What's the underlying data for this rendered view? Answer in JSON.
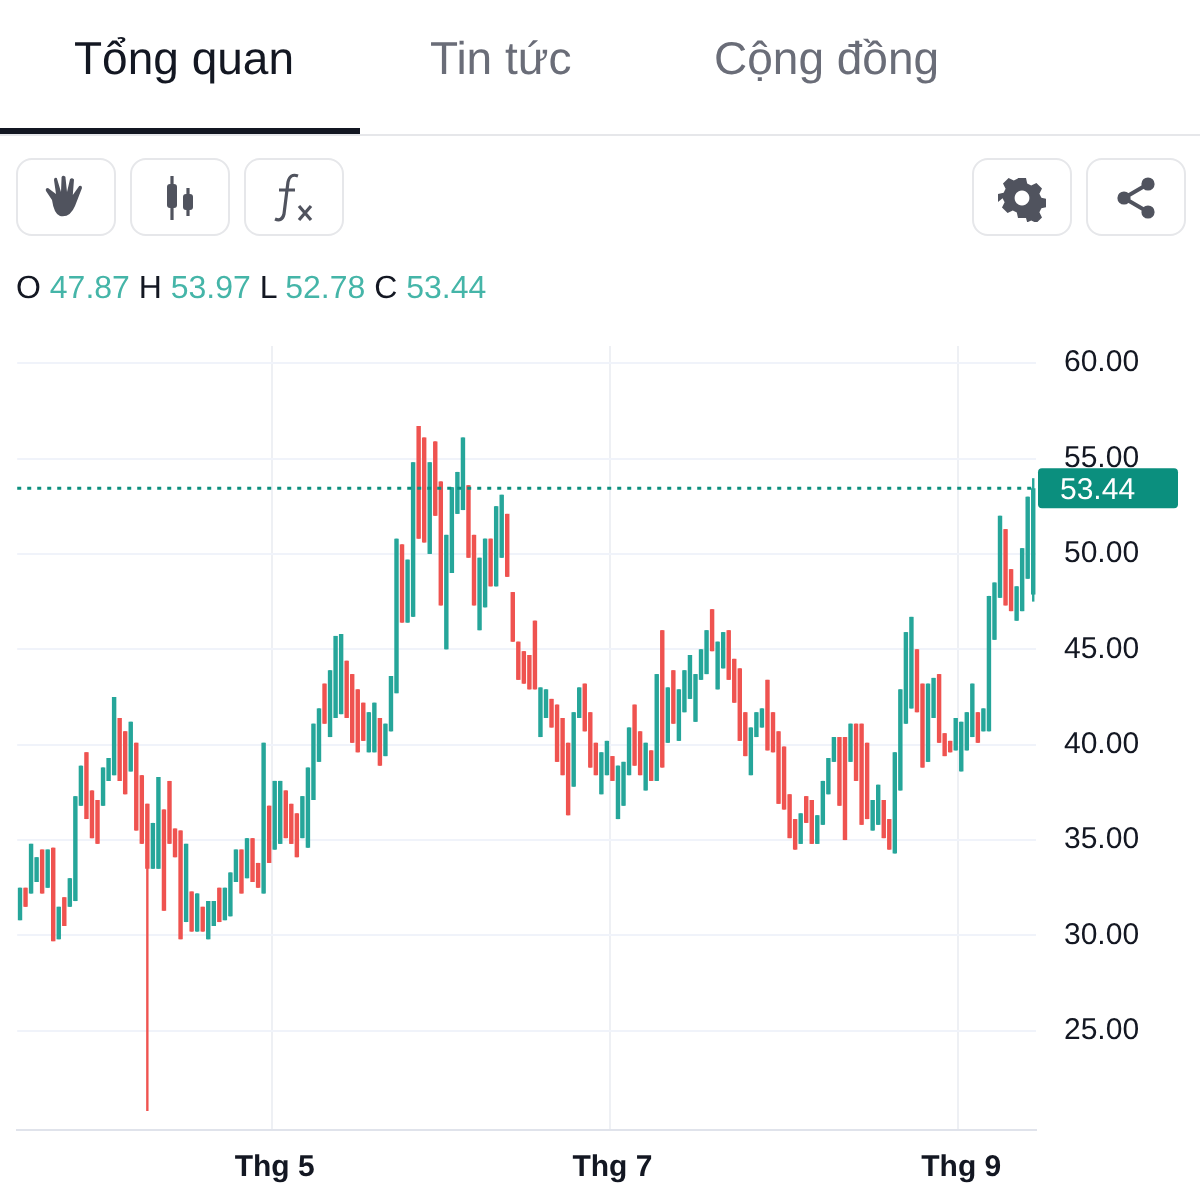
{
  "chart_data": {
    "type": "candlestick",
    "annotations": [
      "Tổng quan",
      "Tin tức",
      "Cộng đồng",
      "O 47.87 H 53.97 L 52.78 C 53.44"
    ],
    "categories": [
      null,
      null,
      null,
      null,
      null,
      null,
      null,
      null,
      null,
      null,
      null,
      null,
      null,
      null,
      null,
      null,
      null,
      null,
      null,
      null,
      null,
      null,
      null,
      null,
      null,
      null,
      null,
      null,
      null,
      null,
      null,
      null,
      null,
      null,
      null,
      null,
      null,
      null,
      null,
      null,
      null,
      null,
      null,
      null,
      null,
      null,
      "Thg 5",
      null,
      null,
      null,
      null,
      null,
      null,
      null,
      null,
      null,
      null,
      null,
      null,
      null,
      null,
      null,
      null,
      null,
      null,
      null,
      null,
      null,
      null,
      null,
      null,
      null,
      null,
      null,
      null,
      null,
      null,
      null,
      null,
      null,
      null,
      null,
      null,
      null,
      null,
      null,
      null,
      null,
      null,
      null,
      null,
      null,
      null,
      null,
      null,
      null,
      null,
      null,
      null,
      null,
      null,
      null,
      null,
      null,
      null,
      null,
      null,
      "Thg 7",
      null,
      null,
      null,
      null,
      null,
      null,
      null,
      null,
      null,
      null,
      null,
      null,
      null,
      null,
      null,
      null,
      null,
      null,
      null,
      null,
      null,
      null,
      null,
      null,
      null,
      null,
      null,
      null,
      null,
      null,
      null,
      null,
      null,
      null,
      null,
      null,
      null,
      null,
      null,
      null,
      null,
      null,
      null,
      null,
      null,
      null,
      null,
      null,
      null,
      null,
      null,
      null,
      null,
      null,
      null,
      null,
      null,
      null,
      null,
      null,
      null,
      null,
      "Thg 9",
      null,
      null,
      null,
      null,
      null,
      null,
      null,
      null,
      null,
      null,
      null,
      null,
      null
    ],
    "ohlc": [
      [
        30.8,
        32.5,
        30.8,
        32.5
      ],
      [
        32.5,
        32.5,
        31.5,
        31.5
      ],
      [
        32.2,
        34.8,
        32.2,
        34.8
      ],
      [
        32.8,
        34.1,
        32.8,
        34.1
      ],
      [
        34.5,
        34.5,
        32.2,
        32.2
      ],
      [
        32.5,
        34.5,
        32.5,
        34.5
      ],
      [
        34.6,
        34.6,
        29.7,
        29.7
      ],
      [
        29.8,
        31.5,
        29.8,
        31.5
      ],
      [
        32.0,
        32.0,
        30.5,
        30.5
      ],
      [
        31.5,
        33.0,
        31.5,
        33.0
      ],
      [
        31.8,
        37.3,
        31.8,
        37.3
      ],
      [
        36.8,
        38.9,
        36.8,
        38.9
      ],
      [
        39.6,
        39.6,
        36.1,
        36.1
      ],
      [
        37.6,
        37.6,
        35.1,
        35.1
      ],
      [
        37.1,
        37.1,
        34.8,
        34.8
      ],
      [
        36.8,
        38.8,
        36.8,
        38.8
      ],
      [
        38.1,
        39.3,
        38.1,
        39.3
      ],
      [
        38.4,
        42.5,
        38.4,
        42.5
      ],
      [
        41.4,
        41.4,
        38.1,
        38.1
      ],
      [
        40.7,
        40.7,
        37.4,
        37.4
      ],
      [
        38.6,
        41.2,
        38.6,
        41.2
      ],
      [
        40.1,
        40.1,
        35.5,
        35.5
      ],
      [
        38.4,
        38.4,
        34.8,
        34.8
      ],
      [
        36.9,
        36.9,
        20.8,
        33.5
      ],
      [
        33.5,
        35.9,
        33.5,
        35.9
      ],
      [
        33.5,
        38.3,
        33.5,
        38.3
      ],
      [
        36.6,
        36.6,
        31.3,
        31.3
      ],
      [
        38.1,
        38.1,
        34.8,
        34.8
      ],
      [
        35.6,
        35.6,
        34.1,
        34.1
      ],
      [
        35.5,
        35.5,
        29.8,
        29.8
      ],
      [
        30.7,
        34.8,
        30.7,
        34.8
      ],
      [
        32.3,
        32.3,
        30.2,
        30.2
      ],
      [
        30.2,
        32.2,
        30.2,
        32.2
      ],
      [
        31.5,
        31.5,
        30.2,
        30.2
      ],
      [
        29.8,
        31.8,
        29.8,
        31.8
      ],
      [
        30.5,
        31.8,
        30.5,
        31.8
      ],
      [
        32.5,
        32.5,
        30.7,
        30.7
      ],
      [
        30.8,
        32.5,
        30.8,
        32.5
      ],
      [
        31.0,
        33.3,
        31.0,
        33.3
      ],
      [
        32.8,
        34.5,
        32.8,
        34.5
      ],
      [
        34.5,
        34.5,
        32.2,
        32.2
      ],
      [
        33.0,
        35.1,
        33.0,
        35.1
      ],
      [
        35.1,
        35.1,
        32.8,
        32.8
      ],
      [
        33.8,
        33.8,
        32.5,
        32.5
      ],
      [
        32.2,
        40.1,
        32.2,
        40.1
      ],
      [
        36.8,
        36.8,
        33.8,
        33.8
      ],
      [
        34.5,
        38.1,
        34.5,
        38.1
      ],
      [
        34.8,
        38.1,
        34.8,
        38.1
      ],
      [
        37.6,
        37.6,
        35.1,
        35.1
      ],
      [
        36.9,
        36.9,
        34.8,
        34.8
      ],
      [
        36.4,
        36.4,
        34.1,
        34.1
      ],
      [
        35.1,
        37.3,
        35.1,
        37.3
      ],
      [
        34.6,
        38.8,
        34.6,
        38.8
      ],
      [
        37.1,
        41.1,
        37.1,
        41.1
      ],
      [
        39.1,
        41.9,
        39.1,
        41.9
      ],
      [
        43.2,
        43.2,
        41.1,
        41.1
      ],
      [
        40.4,
        43.9,
        40.4,
        43.9
      ],
      [
        41.4,
        45.7,
        41.4,
        45.7
      ],
      [
        41.6,
        45.8,
        41.6,
        45.8
      ],
      [
        44.4,
        44.4,
        41.4,
        41.4
      ],
      [
        43.7,
        43.7,
        40.1,
        40.1
      ],
      [
        42.9,
        42.9,
        39.6,
        39.6
      ],
      [
        42.2,
        42.2,
        40.2,
        40.2
      ],
      [
        39.6,
        41.7,
        39.6,
        41.7
      ],
      [
        39.6,
        42.2,
        39.6,
        42.2
      ],
      [
        41.4,
        41.4,
        38.9,
        38.9
      ],
      [
        39.4,
        41.1,
        39.4,
        41.1
      ],
      [
        40.7,
        43.6,
        40.7,
        43.6
      ],
      [
        42.7,
        50.8,
        42.7,
        50.8
      ],
      [
        50.5,
        50.5,
        46.4,
        46.4
      ],
      [
        46.4,
        49.7,
        46.4,
        49.7
      ],
      [
        46.7,
        54.8,
        46.7,
        54.8
      ],
      [
        56.7,
        56.7,
        50.8,
        50.8
      ],
      [
        56.1,
        56.1,
        50.6,
        50.6
      ],
      [
        50.0,
        54.8,
        50.0,
        54.8
      ],
      [
        55.9,
        55.9,
        52.0,
        52.0
      ],
      [
        53.8,
        53.8,
        47.3,
        47.3
      ],
      [
        45.0,
        51.0,
        45.0,
        51.0
      ],
      [
        49.0,
        53.5,
        49.0,
        53.5
      ],
      [
        52.1,
        54.3,
        52.1,
        54.3
      ],
      [
        52.3,
        56.1,
        52.3,
        56.1
      ],
      [
        53.6,
        53.6,
        49.8,
        49.8
      ],
      [
        51.0,
        51.0,
        47.3,
        47.3
      ],
      [
        46.0,
        49.8,
        46.0,
        49.8
      ],
      [
        47.2,
        50.8,
        47.2,
        50.8
      ],
      [
        50.8,
        50.8,
        48.3,
        48.3
      ],
      [
        48.3,
        52.5,
        48.3,
        52.5
      ],
      [
        49.8,
        53.1,
        49.8,
        53.1
      ],
      [
        52.1,
        52.1,
        48.8,
        48.8
      ],
      [
        48.0,
        48.0,
        45.4,
        45.4
      ],
      [
        45.4,
        45.4,
        43.4,
        43.4
      ],
      [
        44.9,
        44.9,
        43.2,
        43.2
      ],
      [
        44.7,
        44.7,
        42.9,
        42.9
      ],
      [
        46.5,
        46.5,
        42.9,
        42.9
      ],
      [
        40.4,
        43.0,
        40.4,
        43.0
      ],
      [
        41.4,
        42.9,
        41.4,
        42.9
      ],
      [
        42.4,
        42.4,
        40.9,
        40.9
      ],
      [
        42.1,
        42.1,
        39.1,
        39.1
      ],
      [
        41.4,
        41.4,
        38.4,
        38.4
      ],
      [
        40.1,
        40.1,
        36.3,
        36.3
      ],
      [
        37.8,
        41.7,
        37.8,
        41.7
      ],
      [
        41.4,
        43.0,
        41.4,
        43.0
      ],
      [
        43.2,
        43.2,
        40.7,
        40.7
      ],
      [
        41.7,
        41.7,
        38.8,
        38.8
      ],
      [
        40.1,
        40.1,
        38.4,
        38.4
      ],
      [
        37.4,
        39.6,
        37.4,
        39.6
      ],
      [
        38.4,
        40.2,
        38.4,
        40.2
      ],
      [
        39.4,
        39.4,
        38.1,
        38.1
      ],
      [
        36.1,
        38.9,
        36.1,
        38.9
      ],
      [
        36.8,
        39.1,
        36.8,
        39.1
      ],
      [
        38.4,
        40.9,
        38.4,
        40.9
      ],
      [
        42.1,
        42.1,
        38.9,
        38.9
      ],
      [
        40.7,
        40.7,
        38.4,
        38.4
      ],
      [
        37.6,
        40.1,
        37.6,
        40.1
      ],
      [
        39.7,
        39.7,
        38.1,
        38.1
      ],
      [
        38.1,
        43.7,
        38.1,
        43.7
      ],
      [
        46.0,
        46.0,
        38.8,
        38.8
      ],
      [
        40.1,
        43.0,
        40.1,
        43.0
      ],
      [
        43.9,
        43.9,
        41.1,
        41.1
      ],
      [
        40.2,
        42.9,
        40.2,
        42.9
      ],
      [
        41.7,
        43.9,
        41.7,
        43.9
      ],
      [
        42.4,
        44.7,
        42.4,
        44.7
      ],
      [
        41.2,
        43.7,
        41.2,
        43.7
      ],
      [
        43.4,
        45.0,
        43.4,
        45.0
      ],
      [
        43.7,
        46.0,
        43.7,
        46.0
      ],
      [
        47.1,
        47.1,
        44.9,
        44.9
      ],
      [
        42.9,
        45.4,
        42.9,
        45.4
      ],
      [
        44.0,
        45.9,
        44.0,
        45.9
      ],
      [
        46.0,
        46.0,
        43.4,
        43.4
      ],
      [
        44.5,
        44.5,
        42.2,
        42.2
      ],
      [
        44.0,
        44.0,
        40.2,
        40.2
      ],
      [
        41.7,
        41.7,
        39.4,
        39.4
      ],
      [
        38.4,
        40.9,
        38.4,
        40.9
      ],
      [
        40.4,
        41.7,
        40.4,
        41.7
      ],
      [
        40.9,
        41.9,
        40.9,
        41.9
      ],
      [
        43.4,
        43.4,
        39.7,
        39.7
      ],
      [
        41.7,
        41.7,
        39.6,
        39.6
      ],
      [
        40.7,
        40.7,
        36.9,
        36.9
      ],
      [
        39.9,
        39.9,
        36.6,
        36.6
      ],
      [
        37.4,
        37.4,
        35.1,
        35.1
      ],
      [
        36.1,
        36.1,
        34.5,
        34.5
      ],
      [
        34.8,
        36.4,
        34.8,
        36.4
      ],
      [
        37.3,
        37.3,
        35.9,
        35.9
      ],
      [
        37.1,
        37.1,
        34.8,
        34.8
      ],
      [
        34.8,
        36.3,
        34.8,
        36.3
      ],
      [
        35.8,
        38.1,
        35.8,
        38.1
      ],
      [
        37.4,
        39.3,
        37.4,
        39.3
      ],
      [
        39.1,
        40.4,
        39.1,
        40.4
      ],
      [
        40.4,
        40.4,
        36.8,
        36.8
      ],
      [
        40.4,
        40.4,
        35.0,
        35.0
      ],
      [
        39.1,
        41.1,
        39.1,
        41.1
      ],
      [
        41.1,
        41.1,
        38.1,
        38.1
      ],
      [
        41.1,
        41.1,
        35.8,
        35.8
      ],
      [
        40.1,
        40.1,
        36.1,
        36.1
      ],
      [
        35.5,
        37.1,
        35.5,
        37.1
      ],
      [
        35.8,
        37.9,
        35.8,
        37.9
      ],
      [
        37.1,
        37.1,
        35.1,
        35.1
      ],
      [
        36.1,
        36.1,
        34.5,
        34.5
      ],
      [
        34.3,
        39.6,
        34.3,
        39.6
      ],
      [
        37.6,
        42.9,
        37.6,
        42.9
      ],
      [
        41.1,
        45.9,
        41.1,
        45.9
      ],
      [
        41.9,
        46.7,
        41.9,
        46.7
      ],
      [
        45.0,
        45.0,
        41.7,
        41.7
      ],
      [
        43.2,
        43.2,
        38.8,
        38.8
      ],
      [
        39.1,
        43.2,
        39.1,
        43.2
      ],
      [
        41.4,
        43.5,
        41.4,
        43.5
      ],
      [
        43.7,
        43.7,
        40.1,
        40.1
      ],
      [
        40.6,
        40.6,
        39.4,
        39.4
      ],
      [
        40.2,
        40.2,
        39.6,
        39.6
      ],
      [
        39.7,
        41.4,
        39.7,
        41.4
      ],
      [
        38.6,
        41.2,
        38.6,
        41.2
      ],
      [
        39.7,
        41.7,
        39.7,
        41.7
      ],
      [
        40.4,
        43.2,
        40.4,
        43.2
      ],
      [
        41.7,
        41.7,
        40.1,
        40.1
      ],
      [
        40.7,
        41.9,
        40.7,
        41.9
      ],
      [
        40.7,
        47.8,
        40.7,
        47.8
      ],
      [
        45.5,
        48.5,
        45.5,
        48.5
      ],
      [
        47.7,
        52.0,
        47.7,
        52.0
      ],
      [
        51.3,
        51.3,
        47.3,
        47.3
      ],
      [
        49.2,
        49.2,
        47.0,
        47.0
      ],
      [
        46.5,
        48.3,
        46.5,
        48.3
      ],
      [
        47.0,
        50.3,
        47.0,
        50.3
      ],
      [
        48.7,
        53.0,
        48.7,
        53.0
      ],
      [
        47.87,
        53.97,
        47.5,
        53.44
      ]
    ],
    "colors": [
      "#26a69a",
      "#ef5350",
      "#26a69a",
      "#26a69a",
      "#ef5350",
      "#26a69a",
      "#ef5350",
      "#26a69a",
      "#ef5350",
      "#26a69a",
      "#26a69a",
      "#26a69a",
      "#ef5350",
      "#ef5350",
      "#ef5350",
      "#26a69a",
      "#26a69a",
      "#26a69a",
      "#ef5350",
      "#ef5350",
      "#26a69a",
      "#ef5350",
      "#ef5350",
      "#ef5350",
      "#26a69a",
      "#26a69a",
      "#ef5350",
      "#ef5350",
      "#ef5350",
      "#ef5350",
      "#26a69a",
      "#ef5350",
      "#26a69a",
      "#ef5350",
      "#26a69a",
      "#26a69a",
      "#ef5350",
      "#26a69a",
      "#26a69a",
      "#26a69a",
      "#ef5350",
      "#26a69a",
      "#ef5350",
      "#ef5350",
      "#26a69a",
      "#ef5350",
      "#26a69a",
      "#26a69a",
      "#ef5350",
      "#ef5350",
      "#ef5350",
      "#26a69a",
      "#26a69a",
      "#26a69a",
      "#26a69a",
      "#ef5350",
      "#26a69a",
      "#26a69a",
      "#26a69a",
      "#ef5350",
      "#ef5350",
      "#ef5350",
      "#ef5350",
      "#26a69a",
      "#26a69a",
      "#ef5350",
      "#26a69a",
      "#26a69a",
      "#26a69a",
      "#ef5350",
      "#26a69a",
      "#26a69a",
      "#ef5350",
      "#ef5350",
      "#26a69a",
      "#ef5350",
      "#ef5350",
      "#26a69a",
      "#26a69a",
      "#26a69a",
      "#26a69a",
      "#ef5350",
      "#ef5350",
      "#26a69a",
      "#26a69a",
      "#ef5350",
      "#26a69a",
      "#26a69a",
      "#ef5350",
      "#ef5350",
      "#ef5350",
      "#ef5350",
      "#ef5350",
      "#ef5350",
      "#26a69a",
      "#26a69a",
      "#ef5350",
      "#ef5350",
      "#ef5350",
      "#ef5350",
      "#26a69a",
      "#26a69a",
      "#ef5350",
      "#ef5350",
      "#ef5350",
      "#26a69a",
      "#26a69a",
      "#ef5350",
      "#26a69a",
      "#26a69a",
      "#26a69a",
      "#ef5350",
      "#ef5350",
      "#26a69a",
      "#ef5350",
      "#26a69a",
      "#ef5350",
      "#26a69a",
      "#ef5350",
      "#26a69a",
      "#26a69a",
      "#26a69a",
      "#26a69a",
      "#26a69a",
      "#26a69a",
      "#ef5350",
      "#26a69a",
      "#26a69a",
      "#ef5350",
      "#ef5350",
      "#ef5350",
      "#ef5350",
      "#26a69a",
      "#26a69a",
      "#26a69a",
      "#ef5350",
      "#ef5350",
      "#ef5350",
      "#ef5350",
      "#ef5350",
      "#ef5350",
      "#26a69a",
      "#ef5350",
      "#ef5350",
      "#26a69a",
      "#26a69a",
      "#26a69a",
      "#26a69a",
      "#ef5350",
      "#ef5350",
      "#26a69a",
      "#ef5350",
      "#ef5350",
      "#ef5350",
      "#26a69a",
      "#26a69a",
      "#ef5350",
      "#ef5350",
      "#26a69a",
      "#26a69a",
      "#26a69a",
      "#26a69a",
      "#ef5350",
      "#ef5350",
      "#26a69a",
      "#26a69a",
      "#ef5350",
      "#ef5350",
      "#ef5350",
      "#26a69a",
      "#26a69a",
      "#26a69a",
      "#26a69a",
      "#ef5350",
      "#26a69a",
      "#26a69a",
      "#26a69a",
      "#26a69a",
      "#ef5350",
      "#ef5350",
      "#26a69a",
      "#26a69a",
      "#26a69a",
      "#26a69a"
    ],
    "ylim": [
      19.8,
      60.9
    ],
    "yticks": [
      {
        "value": 25,
        "label": "25.00"
      },
      {
        "value": 30,
        "label": "30.00"
      },
      {
        "value": 35,
        "label": "35.00"
      },
      {
        "value": 40,
        "label": "40.00"
      },
      {
        "value": 45,
        "label": "45.00"
      },
      {
        "value": 50,
        "label": "50.00"
      },
      {
        "value": 55,
        "label": "55.00"
      },
      {
        "value": 60,
        "label": "60.00"
      }
    ],
    "grid": true,
    "ref_lines": [
      {
        "axis": "y",
        "value": 53.44,
        "label": "53.44",
        "color": "#0b8f7e",
        "line_style": "dotted"
      }
    ]
  }
}
